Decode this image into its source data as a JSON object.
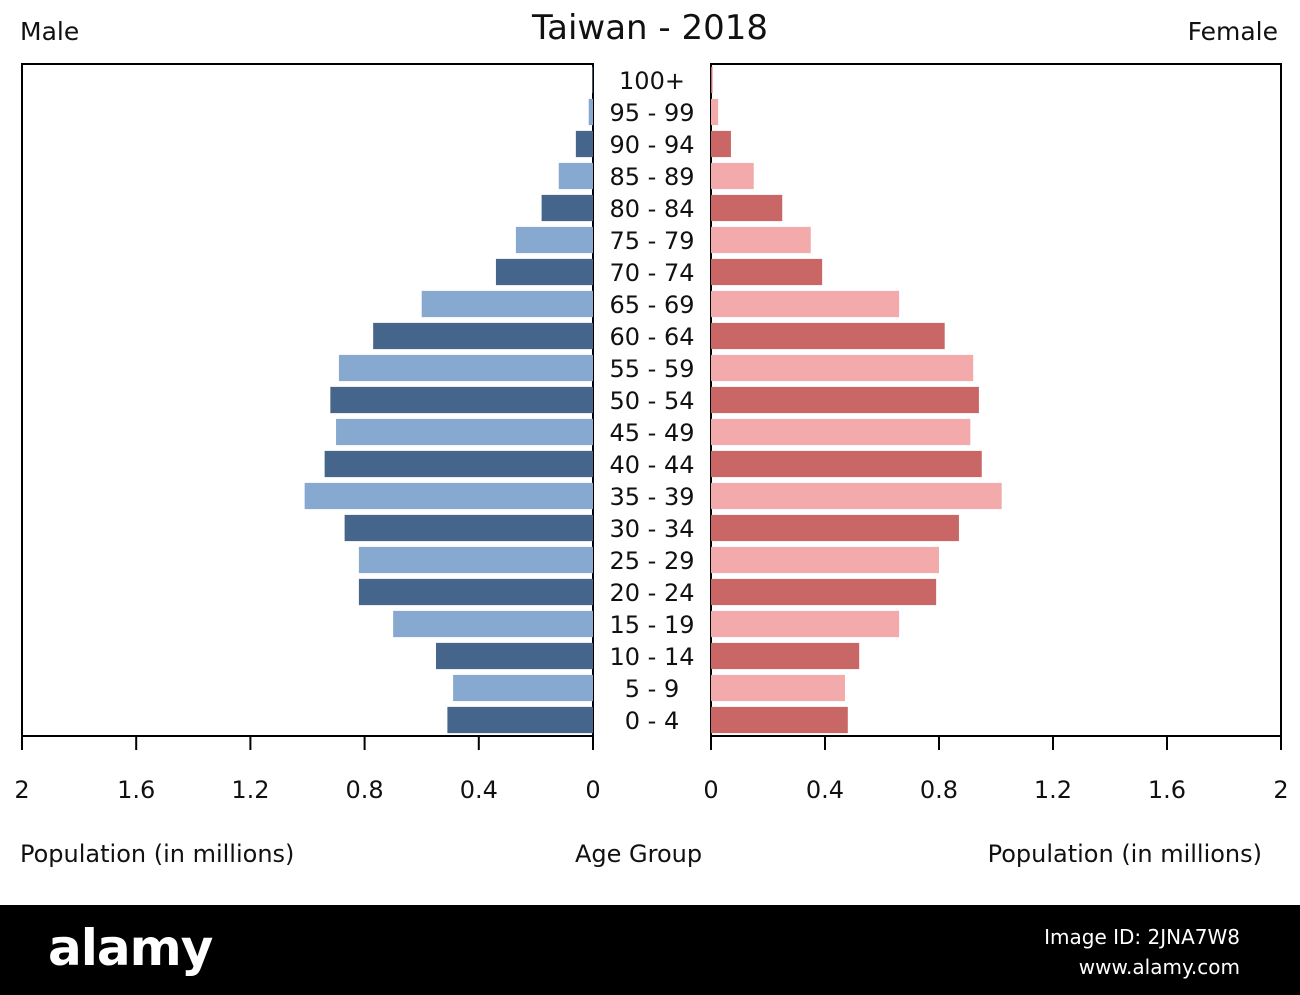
{
  "chart_data": {
    "type": "bar",
    "orientation": "horizontal",
    "title": "Taiwan - 2018",
    "left_panel_label": "Male",
    "right_panel_label": "Female",
    "categories": [
      "0 - 4",
      "5 - 9",
      "10 - 14",
      "15 - 19",
      "20 - 24",
      "25 - 29",
      "30 - 34",
      "35 - 39",
      "40 - 44",
      "45 - 49",
      "50 - 54",
      "55 - 59",
      "60 - 64",
      "65 - 69",
      "70 - 74",
      "75 - 79",
      "80 - 84",
      "85 - 89",
      "90 - 94",
      "95 - 99",
      "100+"
    ],
    "series": [
      {
        "name": "Male",
        "values": [
          0.51,
          0.49,
          0.55,
          0.7,
          0.82,
          0.82,
          0.87,
          1.01,
          0.94,
          0.9,
          0.92,
          0.89,
          0.77,
          0.6,
          0.34,
          0.27,
          0.18,
          0.12,
          0.06,
          0.015,
          0.003
        ],
        "colors": [
          "#45658b",
          "#87a9cf"
        ]
      },
      {
        "name": "Female",
        "values": [
          0.48,
          0.47,
          0.52,
          0.66,
          0.79,
          0.8,
          0.87,
          1.02,
          0.95,
          0.91,
          0.94,
          0.92,
          0.82,
          0.66,
          0.39,
          0.35,
          0.25,
          0.15,
          0.07,
          0.025,
          0.005
        ],
        "colors": [
          "#c96666",
          "#f2aaaa"
        ]
      }
    ],
    "xlim": [
      0,
      2
    ],
    "x_ticks_left": [
      "2",
      "1.6",
      "1.2",
      "0.8",
      "0.4",
      "0"
    ],
    "x_ticks_right": [
      "0",
      "0.4",
      "0.8",
      "1.2",
      "1.6",
      "2"
    ],
    "tick_values": [
      0,
      0.4,
      0.8,
      1.2,
      1.6,
      2
    ],
    "left_xlabel": "Population (in millions)",
    "center_xlabel": "Age Group",
    "right_xlabel": "Population (in millions)",
    "grid": false
  },
  "footer": {
    "brand": "alamy",
    "photo_id": "Image ID: 2JNA7W8",
    "url": "www.alamy.com"
  }
}
